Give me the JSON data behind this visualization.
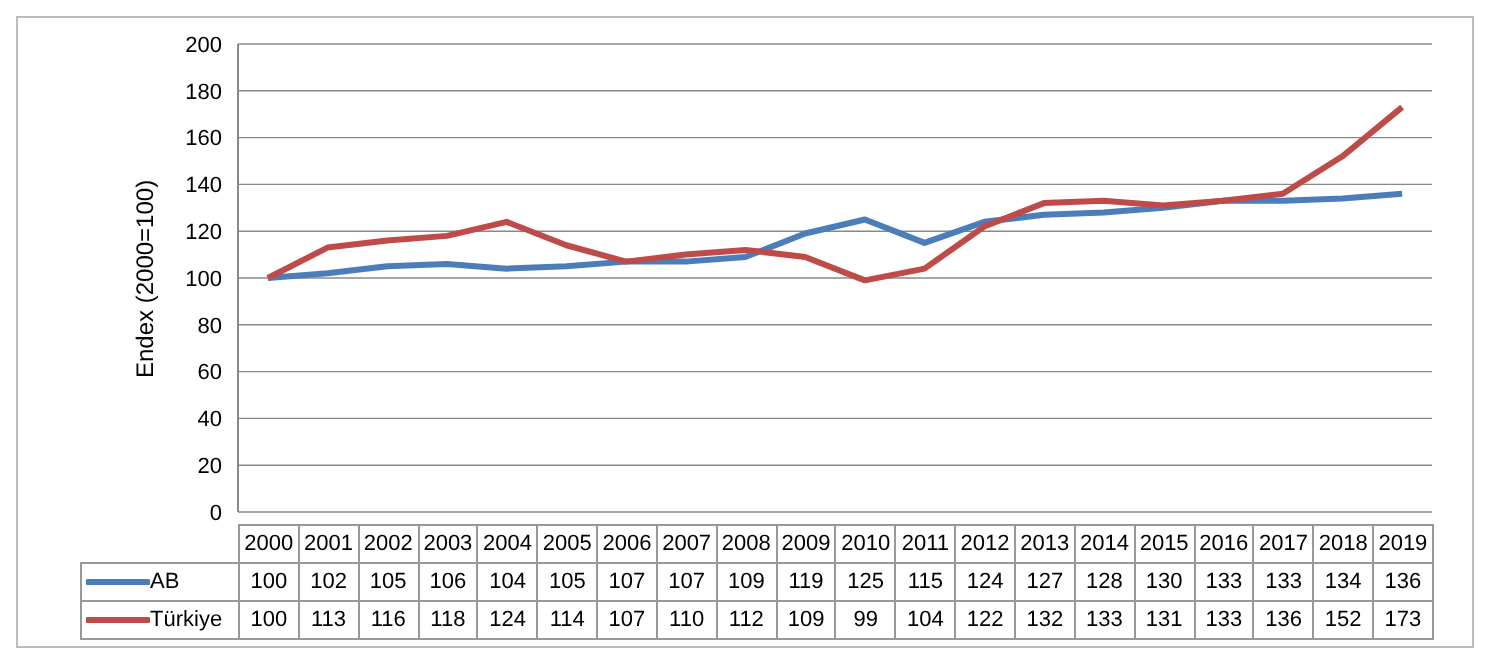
{
  "chart_data": {
    "type": "line",
    "ylabel": "Endex (2000=100)",
    "categories": [
      "2000",
      "2001",
      "2002",
      "2003",
      "2004",
      "2005",
      "2006",
      "2007",
      "2008",
      "2009",
      "2010",
      "2011",
      "2012",
      "2013",
      "2014",
      "2015",
      "2016",
      "2017",
      "2018",
      "2019"
    ],
    "series": [
      {
        "name": "AB",
        "color": "#4a7ebb",
        "values": [
          100,
          102,
          105,
          106,
          104,
          105,
          107,
          107,
          109,
          119,
          125,
          115,
          124,
          127,
          128,
          130,
          133,
          133,
          134,
          136
        ]
      },
      {
        "name": "Türkiye",
        "color": "#be4b48",
        "values": [
          100,
          113,
          116,
          118,
          124,
          114,
          107,
          110,
          112,
          109,
          99,
          104,
          122,
          132,
          133,
          131,
          133,
          136,
          152,
          173
        ]
      }
    ],
    "ylim": [
      0,
      200
    ],
    "yticks": [
      0,
      20,
      40,
      60,
      80,
      100,
      120,
      140,
      160,
      180,
      200
    ],
    "grid": "y",
    "legend": "bottom",
    "data_labels": true,
    "marker": "none",
    "line_style": "solid"
  }
}
